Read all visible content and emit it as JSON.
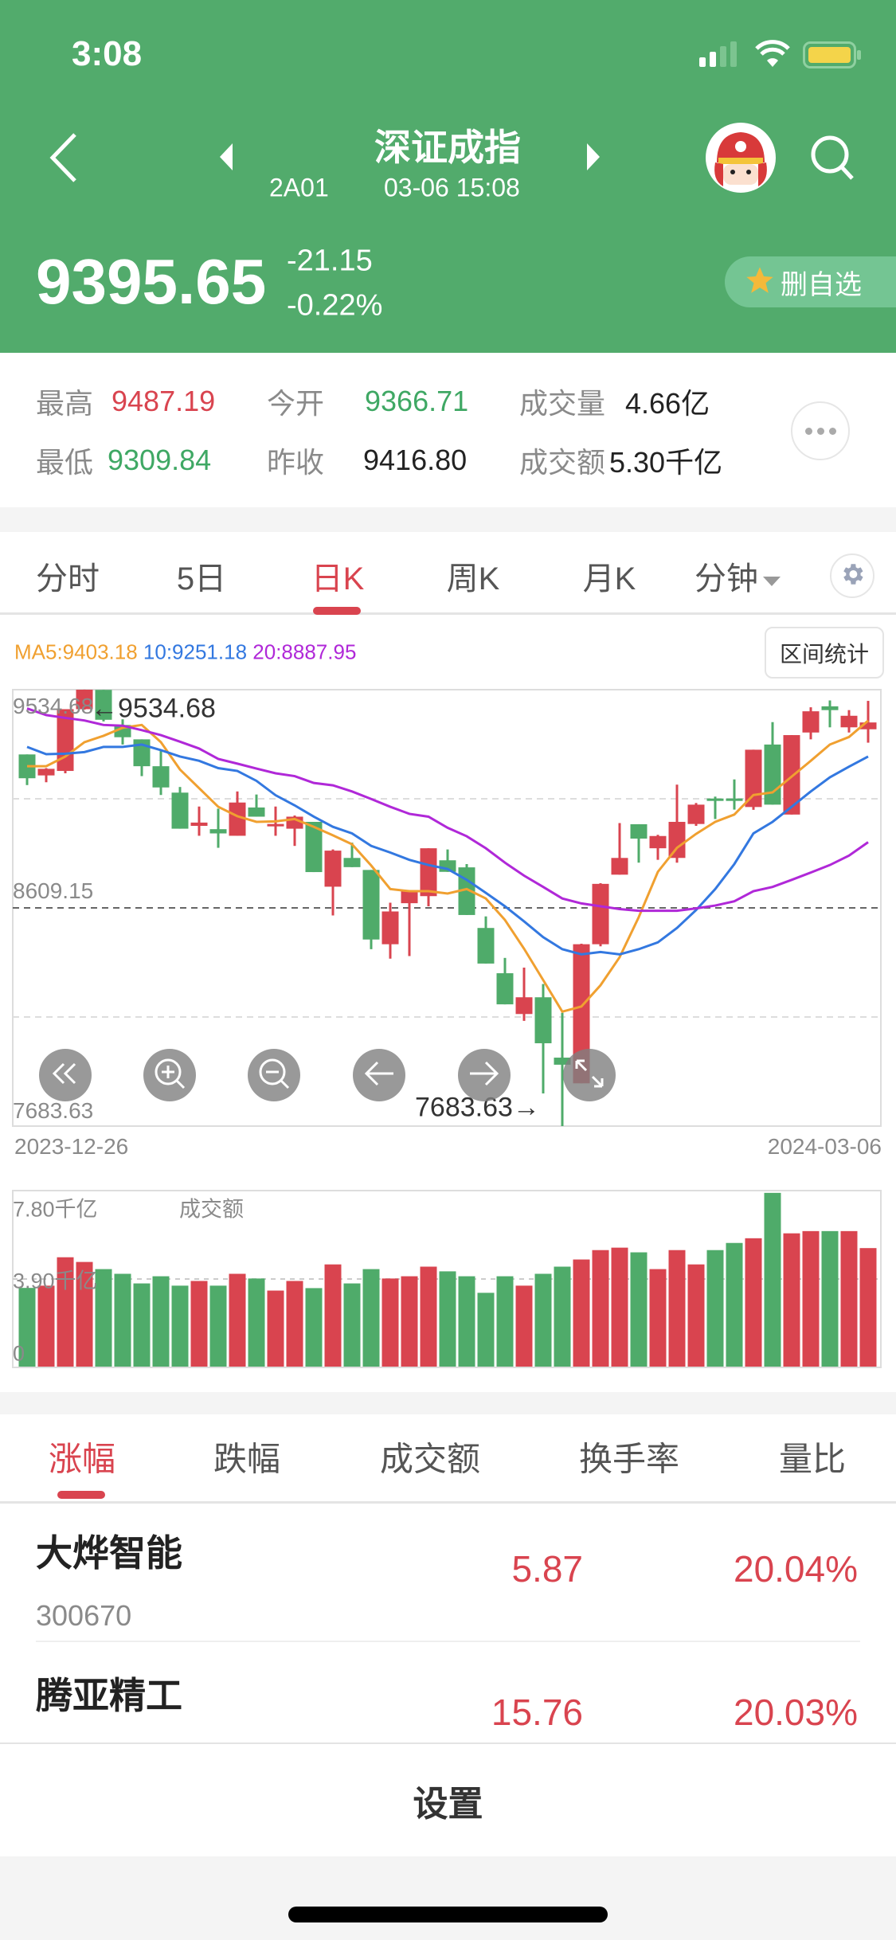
{
  "status": {
    "time": "3:08"
  },
  "header": {
    "title": "深证成指",
    "code": "2A01",
    "datetime": "03-06 15:08",
    "price": "9395.65",
    "change": "-21.15",
    "change_pct": "-0.22%",
    "watch_button": "删自选"
  },
  "stats": {
    "high_label": "最高",
    "high": "9487.19",
    "open_label": "今开",
    "open": "9366.71",
    "volume_label": "成交量",
    "volume": "4.66亿",
    "low_label": "最低",
    "low": "9309.84",
    "prev_close_label": "昨收",
    "prev_close": "9416.80",
    "amount_label": "成交额",
    "amount": "5.30千亿"
  },
  "period_tabs": [
    {
      "label": "分时"
    },
    {
      "label": "5日"
    },
    {
      "label": "日K"
    },
    {
      "label": "周K"
    },
    {
      "label": "月K"
    },
    {
      "label": "分钟"
    }
  ],
  "range_stats_button": "区间统计",
  "colors": {
    "up": "#d9444f",
    "down": "#4fab6a",
    "ma5": "#f0a030",
    "ma10": "#3378e0",
    "ma20": "#b028d8",
    "header": "#52ab6c"
  },
  "chart_data": {
    "type": "candlestick",
    "ma_legend": {
      "ma5": "MA5:9403.18",
      "ma10": "10:9251.18",
      "ma20": "20:8887.95"
    },
    "y_labels": {
      "top": "9534.68",
      "mid": "8609.15",
      "bottom": "7683.63"
    },
    "ylim": [
      7683.63,
      9534.68
    ],
    "high_marker": "←9534.68",
    "low_marker": "7683.63→",
    "high_index": 3,
    "low_index": 28,
    "x_start": "2023-12-26",
    "x_end": "2024-03-06",
    "ohlc": [
      [
        9260,
        9260,
        9130,
        9159
      ],
      [
        9171,
        9202,
        9142,
        9199
      ],
      [
        9190,
        9452,
        9180,
        9452
      ],
      [
        9452,
        9535,
        9450,
        9534.68
      ],
      [
        9534,
        9534,
        9400,
        9407
      ],
      [
        9385,
        9409,
        9302,
        9333
      ],
      [
        9324,
        9324,
        9168,
        9210
      ],
      [
        9210,
        9278,
        9088,
        9120
      ],
      [
        9098,
        9122,
        8945,
        8945
      ],
      [
        8957,
        9039,
        8915,
        8971
      ],
      [
        8943,
        9030,
        8864,
        8925
      ],
      [
        8915,
        9103,
        8915,
        9056
      ],
      [
        9035,
        9090,
        8996,
        8996
      ],
      [
        8957,
        9039,
        8915,
        8965
      ],
      [
        8945,
        9001,
        8872,
        8996
      ],
      [
        8974,
        8974,
        8761,
        8761
      ],
      [
        8699,
        8857,
        8577,
        8852
      ],
      [
        8821,
        8886,
        8782,
        8782
      ],
      [
        8770,
        8770,
        8434,
        8475
      ],
      [
        8455,
        8631,
        8394,
        8594
      ],
      [
        8629,
        8680,
        8405,
        8680
      ],
      [
        8659,
        8862,
        8616,
        8862
      ],
      [
        8811,
        8857,
        8762,
        8762
      ],
      [
        8781,
        8795,
        8579,
        8579
      ],
      [
        8524,
        8573,
        8373,
        8373
      ],
      [
        8332,
        8397,
        8200,
        8200
      ],
      [
        8159,
        8356,
        8130,
        8230
      ],
      [
        8230,
        8286,
        7822,
        8035
      ],
      [
        7974,
        8164,
        7683.63,
        7944
      ],
      [
        7865,
        8457,
        7865,
        8455
      ],
      [
        8455,
        8714,
        8446,
        8711
      ],
      [
        8750,
        8969,
        8750,
        8821
      ],
      [
        8964,
        8964,
        8801,
        8903
      ],
      [
        8862,
        8919,
        8813,
        8914
      ],
      [
        8821,
        9132,
        8801,
        8974
      ],
      [
        8965,
        9054,
        8957,
        9047
      ],
      [
        9073,
        9081,
        8986,
        9069
      ],
      [
        9073,
        9154,
        9026,
        9069
      ],
      [
        9037,
        9280,
        9025,
        9280
      ],
      [
        9302,
        9397,
        9047,
        9047
      ],
      [
        9005,
        9342,
        9005,
        9342
      ],
      [
        9353,
        9460,
        9324,
        9443
      ],
      [
        9464,
        9489,
        9375,
        9448
      ],
      [
        9375,
        9448,
        9353,
        9424
      ],
      [
        9366.71,
        9487.19,
        9309.84,
        9395.65
      ]
    ],
    "ma5": [
      9210,
      9210,
      9251,
      9312,
      9339,
      9373,
      9385,
      9312,
      9196,
      9117,
      9038,
      8998,
      8974,
      8976,
      8986,
      8953,
      8917,
      8879,
      8789,
      8689,
      8680,
      8680,
      8670,
      8689,
      8649,
      8558,
      8436,
      8303,
      8169,
      8191,
      8281,
      8400,
      8570,
      8762,
      8864,
      8923,
      8974,
      9005,
      9088,
      9099,
      9166,
      9233,
      9302,
      9334,
      9403.18
    ],
    "ma10": [
      9292,
      9261,
      9263,
      9270,
      9292,
      9292,
      9302,
      9278,
      9251,
      9233,
      9202,
      9190,
      9148,
      9087,
      9044,
      8996,
      8953,
      8925,
      8872,
      8844,
      8813,
      8791,
      8774,
      8728,
      8673,
      8616,
      8552,
      8485,
      8434,
      8412,
      8422,
      8412,
      8434,
      8463,
      8524,
      8600,
      8689,
      8795,
      8925,
      8974,
      9038,
      9103,
      9163,
      9208,
      9251.18
    ],
    "ma20": [
      9455,
      9427,
      9415,
      9404,
      9385,
      9382,
      9363,
      9342,
      9314,
      9285,
      9241,
      9221,
      9200,
      9180,
      9168,
      9139,
      9129,
      9103,
      9071,
      9038,
      9008,
      8996,
      8949,
      8913,
      8862,
      8801,
      8746,
      8698,
      8649,
      8628,
      8616,
      8604,
      8597,
      8597,
      8597,
      8607,
      8619,
      8637,
      8680,
      8698,
      8728,
      8759,
      8791,
      8831,
      8887.95
    ],
    "volume": {
      "title": "成交额",
      "unit": "千亿",
      "y_labels": {
        "top": "7.80千亿",
        "mid": "3.90千亿",
        "bottom": "0"
      },
      "ylim": [
        0,
        7.8
      ],
      "values": [
        3.52,
        3.62,
        4.89,
        4.68,
        4.36,
        4.15,
        3.72,
        4.04,
        3.62,
        3.83,
        3.62,
        4.15,
        3.94,
        3.4,
        3.83,
        3.51,
        4.57,
        3.72,
        4.36,
        3.94,
        4.04,
        4.47,
        4.26,
        4.04,
        3.3,
        4.04,
        3.62,
        4.15,
        4.47,
        4.79,
        5.21,
        5.32,
        5.11,
        4.36,
        5.21,
        4.57,
        5.21,
        5.53,
        5.74,
        7.77,
        5.96,
        6.06,
        6.06,
        6.06,
        5.3
      ]
    }
  },
  "rank_tabs": [
    {
      "label": "涨幅"
    },
    {
      "label": "跌幅"
    },
    {
      "label": "成交额"
    },
    {
      "label": "换手率"
    },
    {
      "label": "量比"
    }
  ],
  "rank_list": [
    {
      "name": "大烨智能",
      "code": "300670",
      "price": "5.87",
      "pct": "20.04%"
    },
    {
      "name": "腾亚精工",
      "price": "15.76",
      "pct": "20.03%"
    }
  ],
  "settings_label": "设置"
}
